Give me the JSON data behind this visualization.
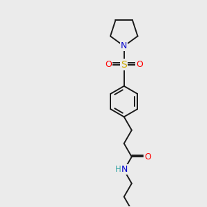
{
  "bg_color": "#ebebeb",
  "bond_color": "#1a1a1a",
  "atom_colors": {
    "N": "#0000cc",
    "O": "#ff0000",
    "S": "#ccaa00",
    "H": "#44aaaa",
    "C": "#1a1a1a"
  },
  "figsize": [
    3.0,
    3.0
  ],
  "dpi": 100,
  "lw": 1.4,
  "fs": 8.5
}
